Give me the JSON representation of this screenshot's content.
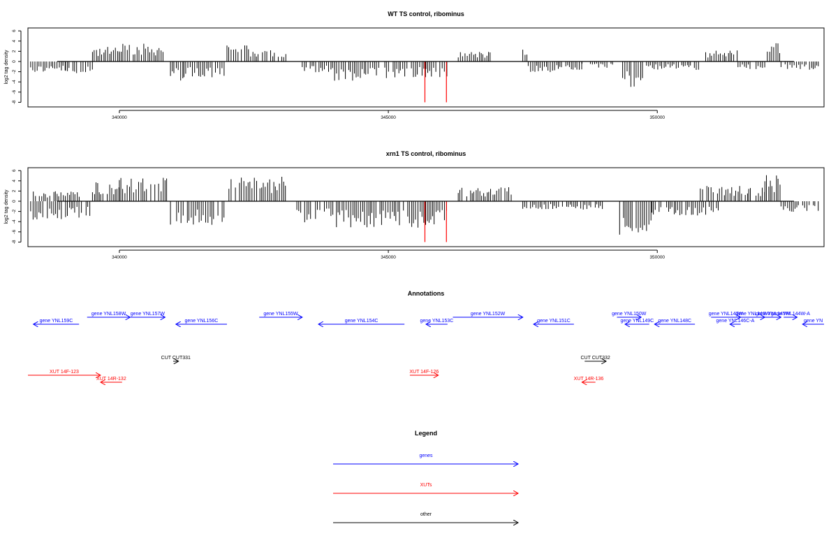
{
  "chart_data": [
    {
      "type": "bar",
      "title": "WT TS control, ribominus",
      "ylabel": "log2 tag density",
      "xlim": [
        338300,
        353100
      ],
      "ylim": [
        -8,
        6
      ],
      "x_ticks": [
        340000,
        345000,
        350000
      ],
      "y_ticks": [
        6,
        4,
        2,
        0,
        -2,
        -4,
        -6,
        -8
      ],
      "x_tick_labels": [
        "340000",
        "345000",
        "350000"
      ],
      "y_tick_labels": [
        "6",
        "4",
        "2",
        "0",
        "-2",
        "-4",
        "-6",
        "-8"
      ],
      "series": [
        {
          "color": "#000000",
          "segments": [
            {
              "x_start": 338350,
              "x_end": 339000,
              "level": -2.0
            },
            {
              "x_start": 339000,
              "x_end": 339500,
              "level": -2.8
            },
            {
              "x_start": 339500,
              "x_end": 340000,
              "level": 2.6
            },
            {
              "x_start": 340000,
              "x_end": 340850,
              "level": 3.2
            },
            {
              "x_start": 340950,
              "x_end": 341200,
              "level": -3.5
            },
            {
              "x_start": 341200,
              "x_end": 342000,
              "level": -3.0
            },
            {
              "x_start": 342000,
              "x_end": 342400,
              "level": 3.3
            },
            {
              "x_start": 342400,
              "x_end": 343100,
              "level": 2.2
            },
            {
              "x_start": 343400,
              "x_end": 344000,
              "level": -2.2
            },
            {
              "x_start": 344000,
              "x_end": 344900,
              "level": -3.5
            },
            {
              "x_start": 344900,
              "x_end": 345700,
              "level": -3.0
            },
            {
              "x_start": 345700,
              "x_end": 346100,
              "level": -2.8
            },
            {
              "x_start": 346300,
              "x_end": 346900,
              "level": 1.8
            },
            {
              "x_start": 347500,
              "x_end": 347600,
              "level": 2.2
            },
            {
              "x_start": 347600,
              "x_end": 348600,
              "level": -2.0
            },
            {
              "x_start": 348600,
              "x_end": 349200,
              "level": -1.2
            },
            {
              "x_start": 349300,
              "x_end": 349800,
              "level": -4.8
            },
            {
              "x_start": 349800,
              "x_end": 350800,
              "level": -1.5
            },
            {
              "x_start": 350900,
              "x_end": 351500,
              "level": 2.0
            },
            {
              "x_start": 351500,
              "x_end": 352000,
              "level": -1.5
            },
            {
              "x_start": 352000,
              "x_end": 352300,
              "level": 3.8
            },
            {
              "x_start": 352300,
              "x_end": 353000,
              "level": -1.5
            }
          ]
        },
        {
          "color": "#ff0000",
          "spikes": [
            {
              "x": 345680,
              "value": -8
            },
            {
              "x": 346080,
              "value": -8
            }
          ]
        }
      ]
    },
    {
      "type": "bar",
      "title": "xrn1 TS control, ribominus",
      "ylabel": "log2 tag density",
      "xlim": [
        338300,
        353100
      ],
      "ylim": [
        -8,
        6
      ],
      "x_ticks": [
        340000,
        345000,
        350000
      ],
      "y_ticks": [
        6,
        4,
        2,
        0,
        -2,
        -4,
        -6,
        -8
      ],
      "x_tick_labels": [
        "340000",
        "345000",
        "350000"
      ],
      "y_tick_labels": [
        "6",
        "4",
        "2",
        "0",
        "-2",
        "-4",
        "-6",
        "-8"
      ],
      "series": [
        {
          "color": "#000000",
          "segments": [
            {
              "x_start": 338350,
              "x_end": 339000,
              "level": -3.5
            },
            {
              "x_start": 339000,
              "x_end": 339500,
              "level": -3.0
            },
            {
              "x_start": 338400,
              "x_end": 339300,
              "level": 1.8
            },
            {
              "x_start": 339500,
              "x_end": 340000,
              "level": 3.8
            },
            {
              "x_start": 340000,
              "x_end": 340900,
              "level": 4.2
            },
            {
              "x_start": 340950,
              "x_end": 342000,
              "level": -4.5
            },
            {
              "x_start": 342000,
              "x_end": 343100,
              "level": 4.5
            },
            {
              "x_start": 343300,
              "x_end": 344000,
              "level": -3.8
            },
            {
              "x_start": 344000,
              "x_end": 346100,
              "level": -4.8
            },
            {
              "x_start": 346300,
              "x_end": 347300,
              "level": 2.6
            },
            {
              "x_start": 347500,
              "x_end": 349000,
              "level": -1.5
            },
            {
              "x_start": 349300,
              "x_end": 349900,
              "level": -6.0
            },
            {
              "x_start": 349900,
              "x_end": 351200,
              "level": -2.8
            },
            {
              "x_start": 350800,
              "x_end": 351700,
              "level": 3.0
            },
            {
              "x_start": 351700,
              "x_end": 352000,
              "level": 2.5
            },
            {
              "x_start": 352000,
              "x_end": 352300,
              "level": 4.8
            },
            {
              "x_start": 352300,
              "x_end": 353000,
              "level": -2.0
            }
          ]
        },
        {
          "color": "#ff0000",
          "spikes": [
            {
              "x": 345680,
              "value": -8
            },
            {
              "x": 346080,
              "value": -8
            }
          ]
        }
      ]
    },
    {
      "type": "annotation_track",
      "title": "Annotations",
      "features": [
        {
          "label": "gene YNL159C",
          "category": "gene",
          "strand": "-",
          "start": 338400,
          "end": 339250,
          "row": 1
        },
        {
          "label": "gene YNL158W",
          "category": "gene",
          "strand": "+",
          "start": 339400,
          "end": 340200,
          "row": 0
        },
        {
          "label": "gene YNL157W",
          "category": "gene",
          "strand": "+",
          "start": 340200,
          "end": 340850,
          "row": 0
        },
        {
          "label": "gene YNL156C",
          "category": "gene",
          "strand": "-",
          "start": 341050,
          "end": 342000,
          "row": 1
        },
        {
          "label": "gene YNL155W",
          "category": "gene",
          "strand": "+",
          "start": 342600,
          "end": 343400,
          "row": 0
        },
        {
          "label": "gene YNL154C",
          "category": "gene",
          "strand": "-",
          "start": 343700,
          "end": 345300,
          "row": 1
        },
        {
          "label": "gene YNL153C",
          "category": "gene",
          "strand": "-",
          "start": 345700,
          "end": 346100,
          "row": 1
        },
        {
          "label": "gene YNL152W",
          "category": "gene",
          "strand": "+",
          "start": 346200,
          "end": 347500,
          "row": 0
        },
        {
          "label": "gene YNL151C",
          "category": "gene",
          "strand": "-",
          "start": 347700,
          "end": 348450,
          "row": 1
        },
        {
          "label": "gene YNL150W",
          "category": "gene",
          "strand": "+",
          "start": 349250,
          "end": 349700,
          "row": 0
        },
        {
          "label": "gene YNL149C",
          "category": "gene",
          "strand": "-",
          "start": 349400,
          "end": 349850,
          "row": 1
        },
        {
          "label": "gene YNL148C",
          "category": "gene",
          "strand": "-",
          "start": 349950,
          "end": 350700,
          "row": 1
        },
        {
          "label": "gene YNL147W",
          "category": "gene",
          "strand": "+",
          "start": 351000,
          "end": 351550,
          "row": 0
        },
        {
          "label": "gene YNL146C-A",
          "category": "gene",
          "strand": "-",
          "start": 351350,
          "end": 351550,
          "row": 1
        },
        {
          "label": "gene YNL146W",
          "category": "gene",
          "strand": "+",
          "start": 351550,
          "end": 352000,
          "row": 0
        },
        {
          "label": "gene YNL145W",
          "category": "gene",
          "strand": "+",
          "start": 352000,
          "end": 352300,
          "row": 0
        },
        {
          "label": "gene YNL144W-A",
          "category": "gene",
          "strand": "+",
          "start": 352350,
          "end": 352600,
          "row": 0
        },
        {
          "label": "gene YN",
          "category": "gene",
          "strand": "-",
          "start": 352700,
          "end": 353100,
          "row": 1
        },
        {
          "label": "CUT CUT331",
          "category": "other",
          "strand": "+",
          "start": 341000,
          "end": 341100,
          "row": 2
        },
        {
          "label": "CUT CUT332",
          "category": "other",
          "strand": "+",
          "start": 348650,
          "end": 349050,
          "row": 2
        },
        {
          "label": "XUT 14F-123",
          "category": "XUT",
          "strand": "+",
          "start": 338300,
          "end": 339650,
          "row": 3
        },
        {
          "label": "XUT 14R-132",
          "category": "XUT",
          "strand": "-",
          "start": 339650,
          "end": 340050,
          "row": 4
        },
        {
          "label": "XUT 14F-126",
          "category": "XUT",
          "strand": "+",
          "start": 345400,
          "end": 345930,
          "row": 3
        },
        {
          "label": "XUT 14R-136",
          "category": "XUT",
          "strand": "-",
          "start": 348600,
          "end": 348850,
          "row": 4
        }
      ]
    },
    {
      "type": "legend",
      "title": "Legend",
      "entries": [
        {
          "label": "genes",
          "color": "#0000ff"
        },
        {
          "label": "XUTs",
          "color": "#ff0000"
        },
        {
          "label": "other",
          "color": "#000000"
        }
      ]
    }
  ]
}
